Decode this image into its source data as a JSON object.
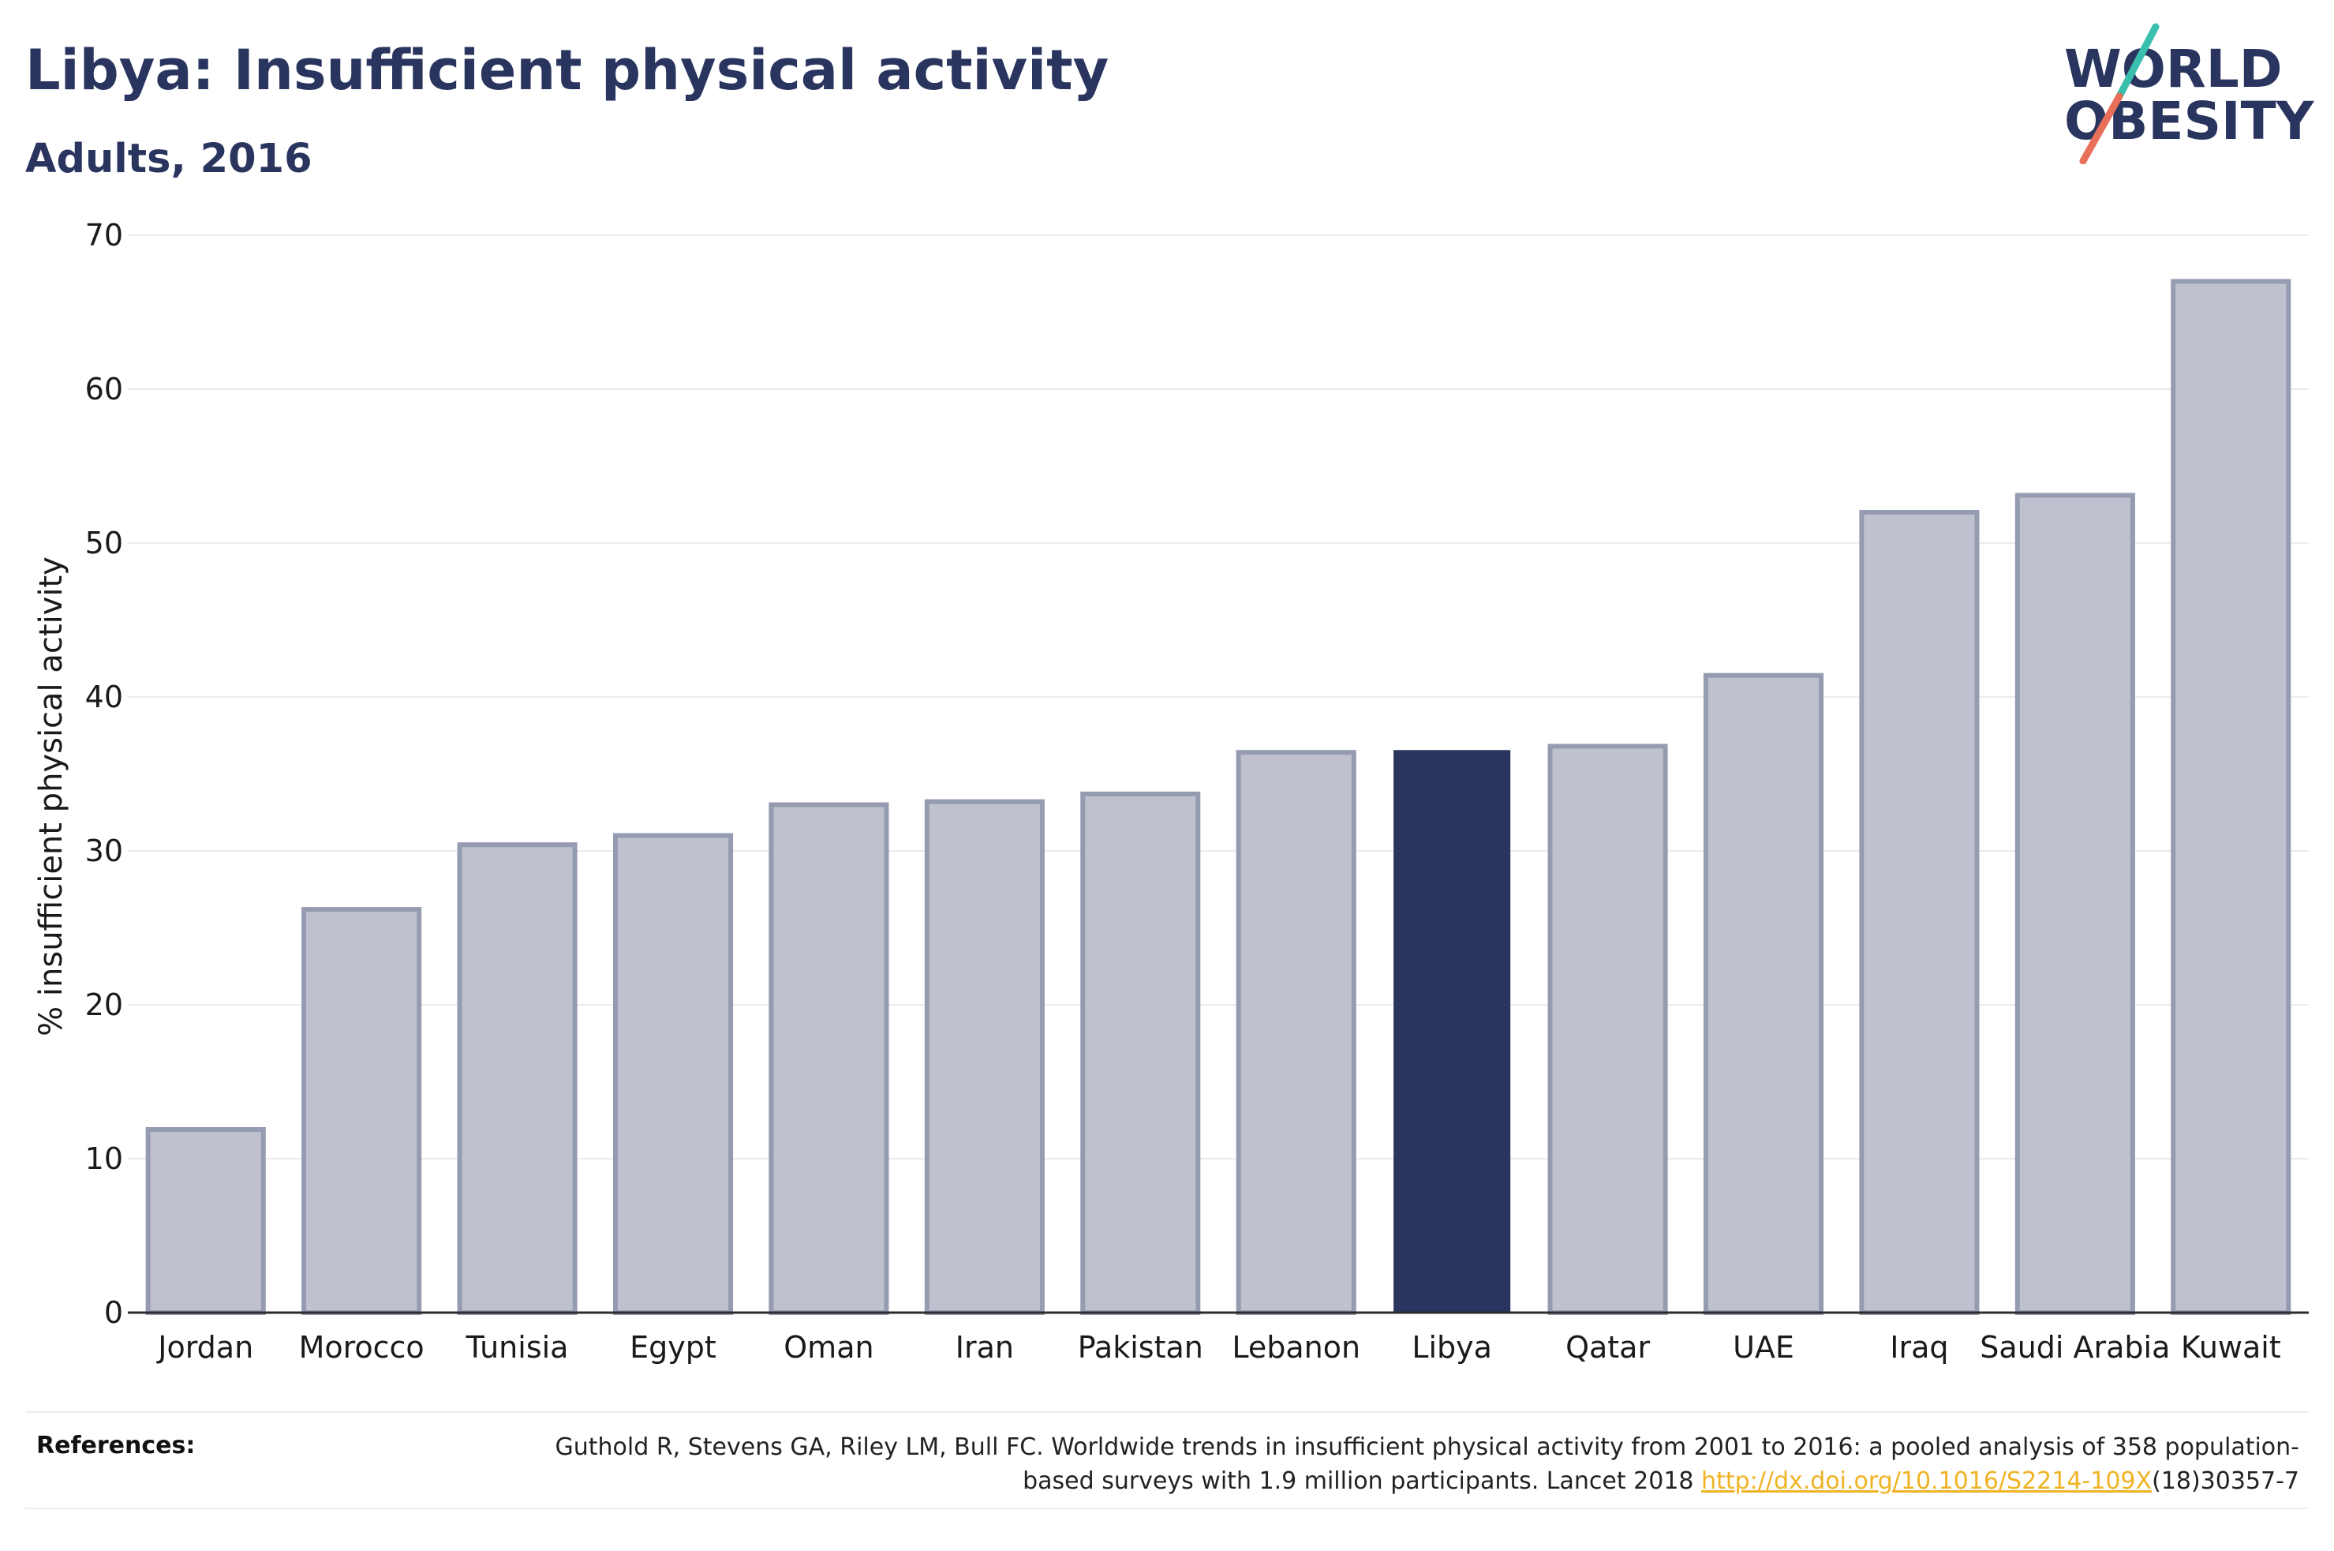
{
  "header": {
    "title": "Libya: Insufficient physical activity",
    "subtitle": "Adults, 2016"
  },
  "logo": {
    "line1": "WORLD",
    "line2": "OBESITY",
    "colors": {
      "text": "#2a355f",
      "slash_top": "#3bbfad",
      "slash_bottom": "#e8705a"
    }
  },
  "chart_data": {
    "type": "bar",
    "title": "Libya: Insufficient physical activity",
    "subtitle": "Adults, 2016",
    "xlabel": "",
    "ylabel": "% insufficient physical activity",
    "ylim": [
      0,
      70
    ],
    "yticks": [
      0,
      10,
      20,
      30,
      40,
      50,
      60,
      70
    ],
    "grid": true,
    "categories": [
      "Jordan",
      "Morocco",
      "Tunisia",
      "Egypt",
      "Oman",
      "Iran",
      "Pakistan",
      "Lebanon",
      "Libya",
      "Qatar",
      "UAE",
      "Iraq",
      "Saudi Arabia",
      "Kuwait"
    ],
    "values": [
      11.9,
      26.2,
      30.4,
      31.0,
      33.0,
      33.2,
      33.7,
      36.4,
      36.5,
      36.8,
      41.4,
      52.0,
      53.1,
      67.0
    ],
    "highlight": "Libya",
    "colors": {
      "highlight": "#2a355f",
      "bar_fill": "#bfc2ce",
      "bar_stroke": "#959bb0",
      "grid": "#ebebeb",
      "axis": "#2b2b2b"
    }
  },
  "references": {
    "label": "References:",
    "text_before": "Guthold R, Stevens GA, Riley LM, Bull FC. Worldwide trends in insufficient physical activity from 2001 to 2016: a pooled analysis of 358 population-based surveys with 1.9 million participants. Lancet 2018 ",
    "link": "http://dx.doi.org/10.1016/S2214-109X",
    "text_after": "(18)30357-7"
  }
}
